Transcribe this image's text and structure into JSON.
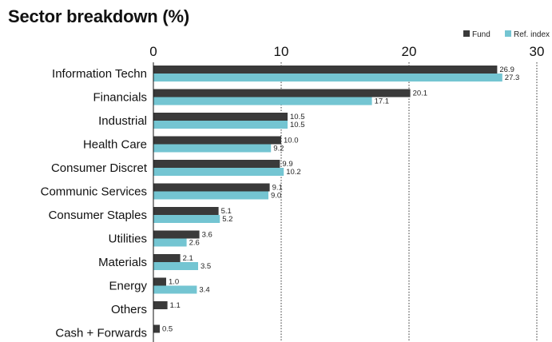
{
  "chart_data": {
    "type": "bar",
    "orientation": "horizontal",
    "title": "Sector breakdown (%)",
    "xlabel": "",
    "ylabel": "",
    "xlim": [
      0,
      30
    ],
    "xticks": [
      "0",
      "10",
      "20",
      "30"
    ],
    "grid": "vertical dotted",
    "legend_position": "top-right",
    "categories": [
      "Information Techn",
      "Financials",
      "Industrial",
      "Health Care",
      "Consumer Discret",
      "Communic Services",
      "Consumer Staples",
      "Utilities",
      "Materials",
      "Energy",
      "Others",
      "Cash + Forwards"
    ],
    "series": [
      {
        "name": "Fund",
        "color": "#3a3a3a",
        "values": [
          26.9,
          20.1,
          10.5,
          10.0,
          9.9,
          9.1,
          5.1,
          3.6,
          2.1,
          1.0,
          1.1,
          0.5
        ],
        "labels": [
          "26.9",
          "20.1",
          "10.5",
          "10.0",
          "9.9",
          "9.1",
          "5.1",
          "3.6",
          "2.1",
          "1.0",
          "1.1",
          "0.5"
        ]
      },
      {
        "name": "Ref. index",
        "color": "#74c5d2",
        "values": [
          27.3,
          17.1,
          10.5,
          9.2,
          10.2,
          9.0,
          5.2,
          2.6,
          3.5,
          3.4,
          null,
          null
        ],
        "labels": [
          "27.3",
          "17.1",
          "10.5",
          "9.2",
          "10.2",
          "9.0",
          "5.2",
          "2.6",
          "3.5",
          "3.4",
          null,
          null
        ]
      }
    ]
  }
}
